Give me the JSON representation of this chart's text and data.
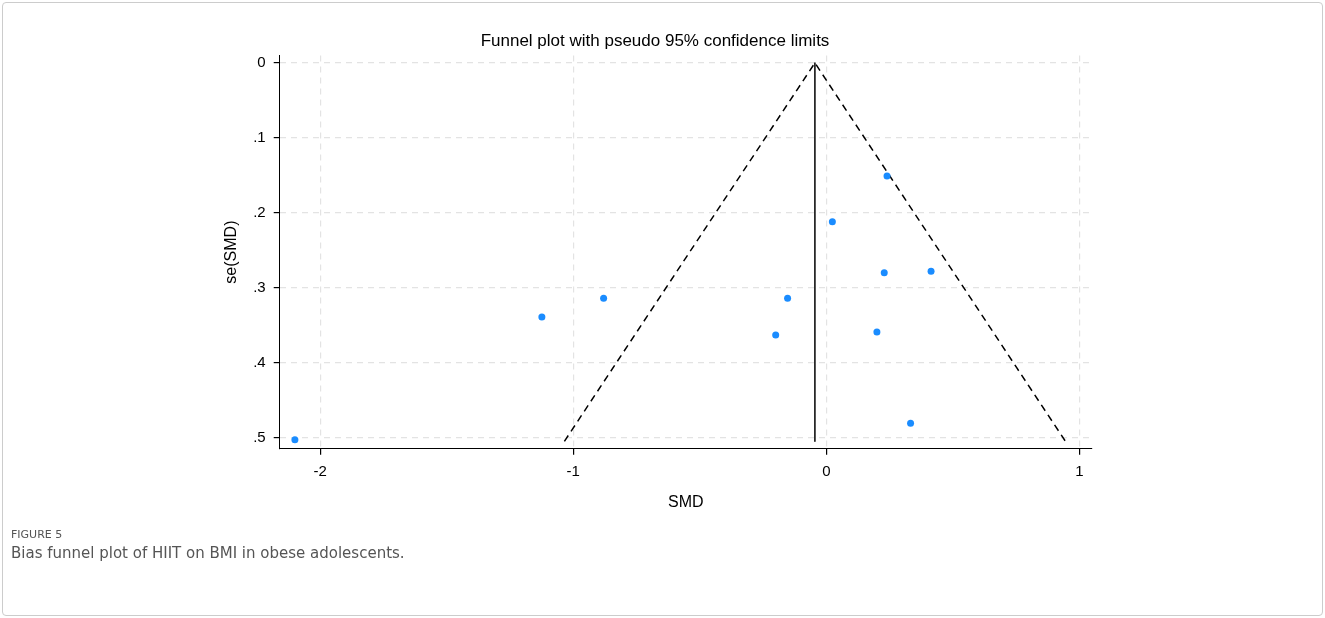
{
  "chart_data": {
    "type": "scatter",
    "title": "Funnel plot with pseudo 95% confidence limits",
    "xlabel": "SMD",
    "ylabel": "se(SMD)",
    "xlim": [
      -2.16,
      1.05
    ],
    "xticks": [
      -2,
      -1,
      0,
      1
    ],
    "ylim": [
      0.515,
      -0.01
    ],
    "yticks": [
      0,
      {
        "value": 0.1,
        "label": ".1"
      },
      {
        "value": 0.2,
        "label": ".2"
      },
      {
        "value": 0.3,
        "label": ".3"
      },
      {
        "value": 0.4,
        "label": ".4"
      },
      {
        "value": 0.5,
        "label": ".5"
      }
    ],
    "grid": true,
    "marker": "circle",
    "series": [
      {
        "type": "scatter",
        "color": "#1a8cff",
        "x": [
          -2.1,
          -1.124,
          -0.88,
          -0.153,
          -0.2,
          0.024,
          0.24,
          0.229,
          0.414,
          0.2,
          0.333
        ],
        "values": [
          0.503,
          0.339,
          0.314,
          0.314,
          0.363,
          0.212,
          0.151,
          0.28,
          0.278,
          0.359,
          0.481
        ]
      },
      {
        "type": "line",
        "color": "#000000",
        "line_style": "solid",
        "marker": "none",
        "x": [
          -0.045,
          -0.045
        ],
        "values": [
          0,
          0.505
        ]
      },
      {
        "type": "line",
        "color": "#000000",
        "line_style": "dashed",
        "marker": "none",
        "x": [
          -1.035,
          -0.045,
          0.945
        ],
        "values": [
          0.505,
          0,
          0.505
        ]
      }
    ],
    "annotations": [
      "FIGURE 5",
      "Bias funnel plot of HIIT on BMI in obese adolescents."
    ]
  }
}
